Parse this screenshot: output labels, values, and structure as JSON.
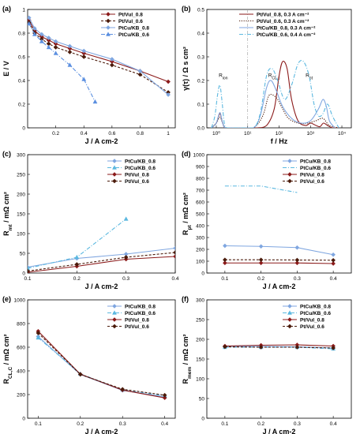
{
  "figure": {
    "background": "#ffffff"
  },
  "chart_data": [
    {
      "id": "a",
      "panel_label": "(a)",
      "type": "line",
      "xlabel": "J / A cm-2",
      "ylabel": "E / V",
      "xlim": [
        0,
        1.05
      ],
      "ylim": [
        0,
        1.0
      ],
      "xscale": "linear",
      "xticks": [
        0.2,
        0.4,
        0.6,
        0.8,
        1
      ],
      "xtick_labels": [
        "0.2",
        "0.4",
        "0.6",
        "0.8",
        "1"
      ],
      "yticks": [
        0,
        0.2,
        0.4,
        0.6,
        0.8,
        1
      ],
      "ytick_labels": [
        "0",
        "0.2",
        "0.4",
        "0.6",
        "0.8",
        "1"
      ],
      "legend_position": "top-right",
      "series": [
        {
          "name": "Pt/Vul_0.8",
          "color": "#8b1a1a",
          "dash": "solid",
          "marker": "diamond",
          "x": [
            0.01,
            0.05,
            0.1,
            0.15,
            0.2,
            0.3,
            0.4,
            0.6,
            0.8,
            1.0
          ],
          "y": [
            0.91,
            0.82,
            0.77,
            0.74,
            0.71,
            0.67,
            0.63,
            0.56,
            0.48,
            0.39
          ]
        },
        {
          "name": "Pt/Vul_0.6",
          "color": "#4a1a0a",
          "dash": "dash",
          "marker": "diamond",
          "x": [
            0.01,
            0.05,
            0.1,
            0.15,
            0.2,
            0.3,
            0.4,
            0.6,
            0.8,
            1.0
          ],
          "y": [
            0.89,
            0.8,
            0.75,
            0.71,
            0.68,
            0.64,
            0.6,
            0.53,
            0.45,
            0.3
          ]
        },
        {
          "name": "PtCu/KB_0.8",
          "color": "#7fa6e0",
          "dash": "solid",
          "marker": "diamond",
          "x": [
            0.01,
            0.05,
            0.1,
            0.15,
            0.2,
            0.3,
            0.4,
            0.6,
            0.8,
            1.0
          ],
          "y": [
            0.93,
            0.84,
            0.79,
            0.76,
            0.73,
            0.69,
            0.65,
            0.58,
            0.48,
            0.28
          ]
        },
        {
          "name": "PtCu/KB_0.6",
          "color": "#5b8fe0",
          "dash": "dashdot",
          "marker": "triangle",
          "x": [
            0.01,
            0.05,
            0.1,
            0.15,
            0.2,
            0.3,
            0.4,
            0.48
          ],
          "y": [
            0.88,
            0.79,
            0.73,
            0.68,
            0.63,
            0.53,
            0.41,
            0.22
          ]
        }
      ]
    },
    {
      "id": "b",
      "panel_label": "(b)",
      "type": "line",
      "xlabel": "f / Hz",
      "ylabel": "γ(τ) / Ω s cm²",
      "xlim": [
        0.5,
        20000
      ],
      "ylim": [
        0,
        0.5
      ],
      "xscale": "log",
      "xticks": [
        1,
        10,
        100,
        1000,
        10000
      ],
      "xtick_labels": [
        "10⁰",
        "10¹",
        "10²",
        "10³",
        "10⁴"
      ],
      "yticks": [
        0,
        0.1,
        0.2,
        0.3,
        0.4,
        0.5
      ],
      "ytick_labels": [
        "0.0",
        "0.1",
        "0.2",
        "0.3",
        "0.4",
        "0.5"
      ],
      "vline_x": 10,
      "annotations": [
        {
          "text": "R",
          "sub": "ion",
          "x": 1.2,
          "y": 0.215
        },
        {
          "text": "R",
          "sub": "CL,c",
          "x": 45,
          "y": 0.215
        },
        {
          "text": "R",
          "sub": "pt",
          "x": 700,
          "y": 0.215
        }
      ],
      "legend_position": "top-right",
      "series": [
        {
          "name": "Pt/Vul_0.8, 0.3 A cm⁻²",
          "color": "#8b1a1a",
          "dash": "solid",
          "x": [
            0.7,
            1.0,
            1.3,
            1.6,
            2.0,
            5,
            20,
            40,
            70,
            100,
            130,
            180,
            250,
            400,
            700,
            1000,
            1500,
            2000,
            2600,
            3500,
            5000,
            8000
          ],
          "y": [
            0.0,
            0.02,
            0.06,
            0.02,
            0.0,
            0.0,
            0.0,
            0.01,
            0.08,
            0.22,
            0.28,
            0.25,
            0.12,
            0.03,
            0.01,
            0.02,
            0.01,
            0.005,
            0.02,
            0.01,
            0.0,
            0.0
          ]
        },
        {
          "name": "Pt/Vul_0.6, 0.3 A cm⁻²",
          "color": "#4a1a0a",
          "dash": "dot",
          "x": [
            0.7,
            1.0,
            1.3,
            1.6,
            2.0,
            5,
            15,
            30,
            45,
            60,
            90,
            130,
            200,
            400,
            800,
            1500,
            2500,
            4000,
            8000
          ],
          "y": [
            0.0,
            0.02,
            0.045,
            0.02,
            0.0,
            0.0,
            0.0,
            0.05,
            0.13,
            0.14,
            0.12,
            0.08,
            0.04,
            0.02,
            0.02,
            0.03,
            0.04,
            0.01,
            0.0
          ]
        },
        {
          "name": "PtCu/KB_0.8, 0.3 A cm⁻²",
          "color": "#7fa6e0",
          "dash": "solid",
          "x": [
            0.7,
            1.0,
            1.3,
            1.6,
            2.0,
            5,
            15,
            25,
            40,
            55,
            80,
            130,
            250,
            500,
            1000,
            1800,
            2500,
            3200,
            4000,
            6000
          ],
          "y": [
            0.0,
            0.02,
            0.065,
            0.02,
            0.0,
            0.0,
            0.0,
            0.05,
            0.17,
            0.2,
            0.16,
            0.09,
            0.04,
            0.02,
            0.03,
            0.08,
            0.12,
            0.09,
            0.03,
            0.0
          ]
        },
        {
          "name": "PtCu/KB_0.6, 0.4 A cm⁻²",
          "color": "#5bb8e0",
          "dash": "dashdot",
          "x": [
            0.7,
            0.9,
            1.1,
            1.3,
            1.5,
            1.8,
            2.2,
            5,
            15,
            25,
            40,
            60,
            90,
            150,
            250,
            400,
            600,
            900,
            1300,
            1800,
            2500,
            3500,
            5000,
            8000
          ],
          "y": [
            0.0,
            0.05,
            0.14,
            0.18,
            0.12,
            0.02,
            0.0,
            0.0,
            0.0,
            0.06,
            0.22,
            0.25,
            0.2,
            0.12,
            0.18,
            0.27,
            0.28,
            0.22,
            0.1,
            0.05,
            0.06,
            0.1,
            0.05,
            0.0
          ]
        }
      ]
    },
    {
      "id": "c",
      "panel_label": "(c)",
      "type": "line",
      "xlabel": "J / A cm-2",
      "ylabel": "R",
      "ylabel_sub": "mt",
      "ylabel_tail": " / mΩ cm²",
      "xlim": [
        0.1,
        0.4
      ],
      "ylim": [
        0,
        300
      ],
      "xscale": "linear",
      "xticks": [
        0.1,
        0.2,
        0.3,
        0.4
      ],
      "xtick_labels": [
        "0.1",
        "0.2",
        "0.3",
        "0.4"
      ],
      "yticks": [
        0,
        50,
        100,
        150,
        200,
        250,
        300
      ],
      "ytick_labels": [
        "0",
        "50",
        "100",
        "150",
        "200",
        "250",
        "300"
      ],
      "legend_position": "top-right",
      "series": [
        {
          "name": "PtCu/KB_0.8",
          "color": "#7fa6e0",
          "dash": "solid",
          "marker": "diamond",
          "x": [
            0.1,
            0.2,
            0.3,
            0.4
          ],
          "y": [
            15,
            37,
            48,
            63
          ]
        },
        {
          "name": "PtCu/KB_0.6",
          "color": "#5bb8e0",
          "dash": "dashdot",
          "marker": "triangle",
          "x": [
            0.1,
            0.2,
            0.3
          ],
          "y": [
            12,
            40,
            137
          ]
        },
        {
          "name": "Pt/Vul_0.8",
          "color": "#8b1a1a",
          "dash": "solid",
          "marker": "diamond",
          "x": [
            0.1,
            0.2,
            0.3,
            0.4
          ],
          "y": [
            2,
            17,
            35,
            42
          ]
        },
        {
          "name": "Pt/Vul_0.6",
          "color": "#4a1a0a",
          "dash": "dash",
          "marker": "diamond",
          "x": [
            0.1,
            0.2,
            0.3,
            0.4
          ],
          "y": [
            5,
            22,
            40,
            52
          ]
        }
      ]
    },
    {
      "id": "d",
      "panel_label": "(d)",
      "type": "line",
      "xlabel": "J / A cm-2",
      "ylabel": "R",
      "ylabel_sub": "pt",
      "ylabel_tail": " / mΩ cm²",
      "xlim": [
        0.05,
        0.45
      ],
      "ylim": [
        0,
        1000
      ],
      "xscale": "linear",
      "xticks": [
        0.1,
        0.2,
        0.3,
        0.4
      ],
      "xtick_labels": [
        "0.1",
        "0.2",
        "0.3",
        "0.4"
      ],
      "yticks": [
        0,
        100,
        200,
        300,
        400,
        500,
        600,
        700,
        800,
        900,
        1000
      ],
      "ytick_labels": [
        "0",
        "100",
        "200",
        "300",
        "400",
        "500",
        "600",
        "700",
        "800",
        "900",
        "1000"
      ],
      "legend_position": "top-right",
      "series": [
        {
          "name": "PtCu/KB_0.8",
          "color": "#7fa6e0",
          "dash": "solid",
          "marker": "diamond",
          "x": [
            0.1,
            0.2,
            0.3,
            0.4
          ],
          "y": [
            230,
            225,
            215,
            155
          ]
        },
        {
          "name": "PtCu/KB_0.6",
          "color": "#5bb8e0",
          "dash": "dashdot",
          "marker": "none",
          "x": [
            0.1,
            0.2,
            0.3
          ],
          "y": [
            735,
            735,
            680
          ]
        },
        {
          "name": "Pt/Vul_0.8",
          "color": "#8b1a1a",
          "dash": "solid",
          "marker": "diamond",
          "x": [
            0.1,
            0.2,
            0.3,
            0.4
          ],
          "y": [
            85,
            85,
            85,
            80
          ]
        },
        {
          "name": "Pt/Vul_0.6",
          "color": "#4a1a0a",
          "dash": "dash",
          "marker": "diamond",
          "x": [
            0.1,
            0.2,
            0.3,
            0.4
          ],
          "y": [
            112,
            112,
            110,
            108
          ]
        }
      ]
    },
    {
      "id": "e",
      "panel_label": "(e)",
      "type": "line",
      "xlabel": "J / A cm-2",
      "ylabel": "R",
      "ylabel_sub": "CL,C",
      "ylabel_tail": " / mΩ cm²",
      "xlim": [
        0.075,
        0.425
      ],
      "ylim": [
        0,
        1000
      ],
      "xscale": "linear",
      "xticks": [
        0.1,
        0.2,
        0.3,
        0.4
      ],
      "xtick_labels": [
        "0.1",
        "0.2",
        "0.3",
        "0.4"
      ],
      "yticks": [
        0,
        200,
        400,
        600,
        800,
        1000
      ],
      "ytick_labels": [
        "0",
        "200",
        "400",
        "600",
        "800",
        "1000"
      ],
      "legend_position": "top-right",
      "series": [
        {
          "name": "PtCu/KB_0.8",
          "color": "#7fa6e0",
          "dash": "solid",
          "marker": "diamond",
          "x": [
            0.1,
            0.2,
            0.3,
            0.4
          ],
          "y": [
            690,
            370,
            235,
            180
          ]
        },
        {
          "name": "PtCu/KB_0.6",
          "color": "#5bb8e0",
          "dash": "dashdot",
          "marker": "triangle",
          "x": [
            0.1,
            0.2,
            0.3,
            0.4
          ],
          "y": [
            680,
            375,
            240,
            190
          ]
        },
        {
          "name": "Pt/Vul_0.8",
          "color": "#8b1a1a",
          "dash": "solid",
          "marker": "diamond",
          "x": [
            0.1,
            0.2,
            0.3,
            0.4
          ],
          "y": [
            735,
            372,
            238,
            172
          ]
        },
        {
          "name": "Pt/Vul_0.6",
          "color": "#4a1a0a",
          "dash": "dash",
          "marker": "diamond",
          "x": [
            0.1,
            0.2,
            0.3,
            0.4
          ],
          "y": [
            720,
            370,
            245,
            195
          ]
        }
      ]
    },
    {
      "id": "f",
      "panel_label": "(f)",
      "type": "line",
      "xlabel": "J / A cm-2",
      "ylabel": "R",
      "ylabel_sub": "mem",
      "ylabel_tail": " / mΩ cm²",
      "xlim": [
        0.05,
        0.45
      ],
      "ylim": [
        0,
        300
      ],
      "xscale": "linear",
      "xticks": [
        0.1,
        0.2,
        0.3,
        0.4
      ],
      "xtick_labels": [
        "0.1",
        "0.2",
        "0.3",
        "0.4"
      ],
      "yticks": [
        0,
        50,
        100,
        150,
        200,
        250,
        300
      ],
      "ytick_labels": [
        "0",
        "50",
        "100",
        "150",
        "200",
        "250",
        "300"
      ],
      "legend_position": "top-right",
      "series": [
        {
          "name": "PtCu/KB_0.8",
          "color": "#7fa6e0",
          "dash": "solid",
          "marker": "diamond",
          "x": [
            0.1,
            0.2,
            0.3,
            0.4
          ],
          "y": [
            182,
            182,
            181,
            178
          ]
        },
        {
          "name": "PtCu/KB_0.6",
          "color": "#5bb8e0",
          "dash": "dashdot",
          "marker": "triangle",
          "x": [
            0.1,
            0.2,
            0.3,
            0.4
          ],
          "y": [
            180,
            180,
            180,
            176
          ]
        },
        {
          "name": "Pt/Vul_0.8",
          "color": "#8b1a1a",
          "dash": "solid",
          "marker": "diamond",
          "x": [
            0.1,
            0.2,
            0.3,
            0.4
          ],
          "y": [
            183,
            185,
            186,
            183
          ]
        },
        {
          "name": "Pt/Vul_0.6",
          "color": "#4a1a0a",
          "dash": "dash",
          "marker": "diamond",
          "x": [
            0.1,
            0.2,
            0.3,
            0.4
          ],
          "y": [
            181,
            180,
            180,
            178
          ]
        }
      ]
    }
  ]
}
